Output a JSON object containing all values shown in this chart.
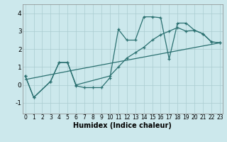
{
  "xlabel": "Humidex (Indice chaleur)",
  "xlim": [
    -0.3,
    23.3
  ],
  "ylim": [
    -1.6,
    4.5
  ],
  "xticks": [
    0,
    1,
    2,
    3,
    4,
    5,
    6,
    7,
    8,
    9,
    10,
    11,
    12,
    13,
    14,
    15,
    16,
    17,
    18,
    19,
    20,
    21,
    22,
    23
  ],
  "yticks": [
    -1,
    0,
    1,
    2,
    3,
    4
  ],
  "bg_color": "#cce8ec",
  "grid_color": "#aaccd0",
  "line_color": "#2a7070",
  "curve1_x": [
    0,
    1,
    3,
    4,
    5,
    6,
    7,
    8,
    9,
    10,
    11,
    12,
    13,
    14,
    15,
    16,
    17,
    18,
    19,
    20,
    21,
    22,
    23
  ],
  "curve1_y": [
    0.5,
    -0.7,
    0.2,
    1.25,
    1.25,
    -0.05,
    -0.15,
    -0.15,
    -0.15,
    0.4,
    3.1,
    2.5,
    2.5,
    3.8,
    3.8,
    3.75,
    1.45,
    3.45,
    3.45,
    3.05,
    2.85,
    2.4,
    2.35
  ],
  "curve2_x": [
    0,
    1,
    3,
    4,
    5,
    6,
    10,
    11,
    12,
    13,
    14,
    15,
    16,
    17,
    18,
    19,
    20,
    21,
    22,
    23
  ],
  "curve2_y": [
    0.5,
    -0.7,
    0.2,
    1.25,
    1.25,
    0.0,
    0.5,
    1.0,
    1.5,
    1.8,
    2.1,
    2.5,
    2.8,
    3.0,
    3.2,
    3.0,
    3.05,
    2.85,
    2.4,
    2.35
  ],
  "curve3_x": [
    0,
    6,
    23
  ],
  "curve3_y": [
    0.3,
    0.85,
    2.35
  ],
  "lw": 0.9,
  "ms": 2.5
}
